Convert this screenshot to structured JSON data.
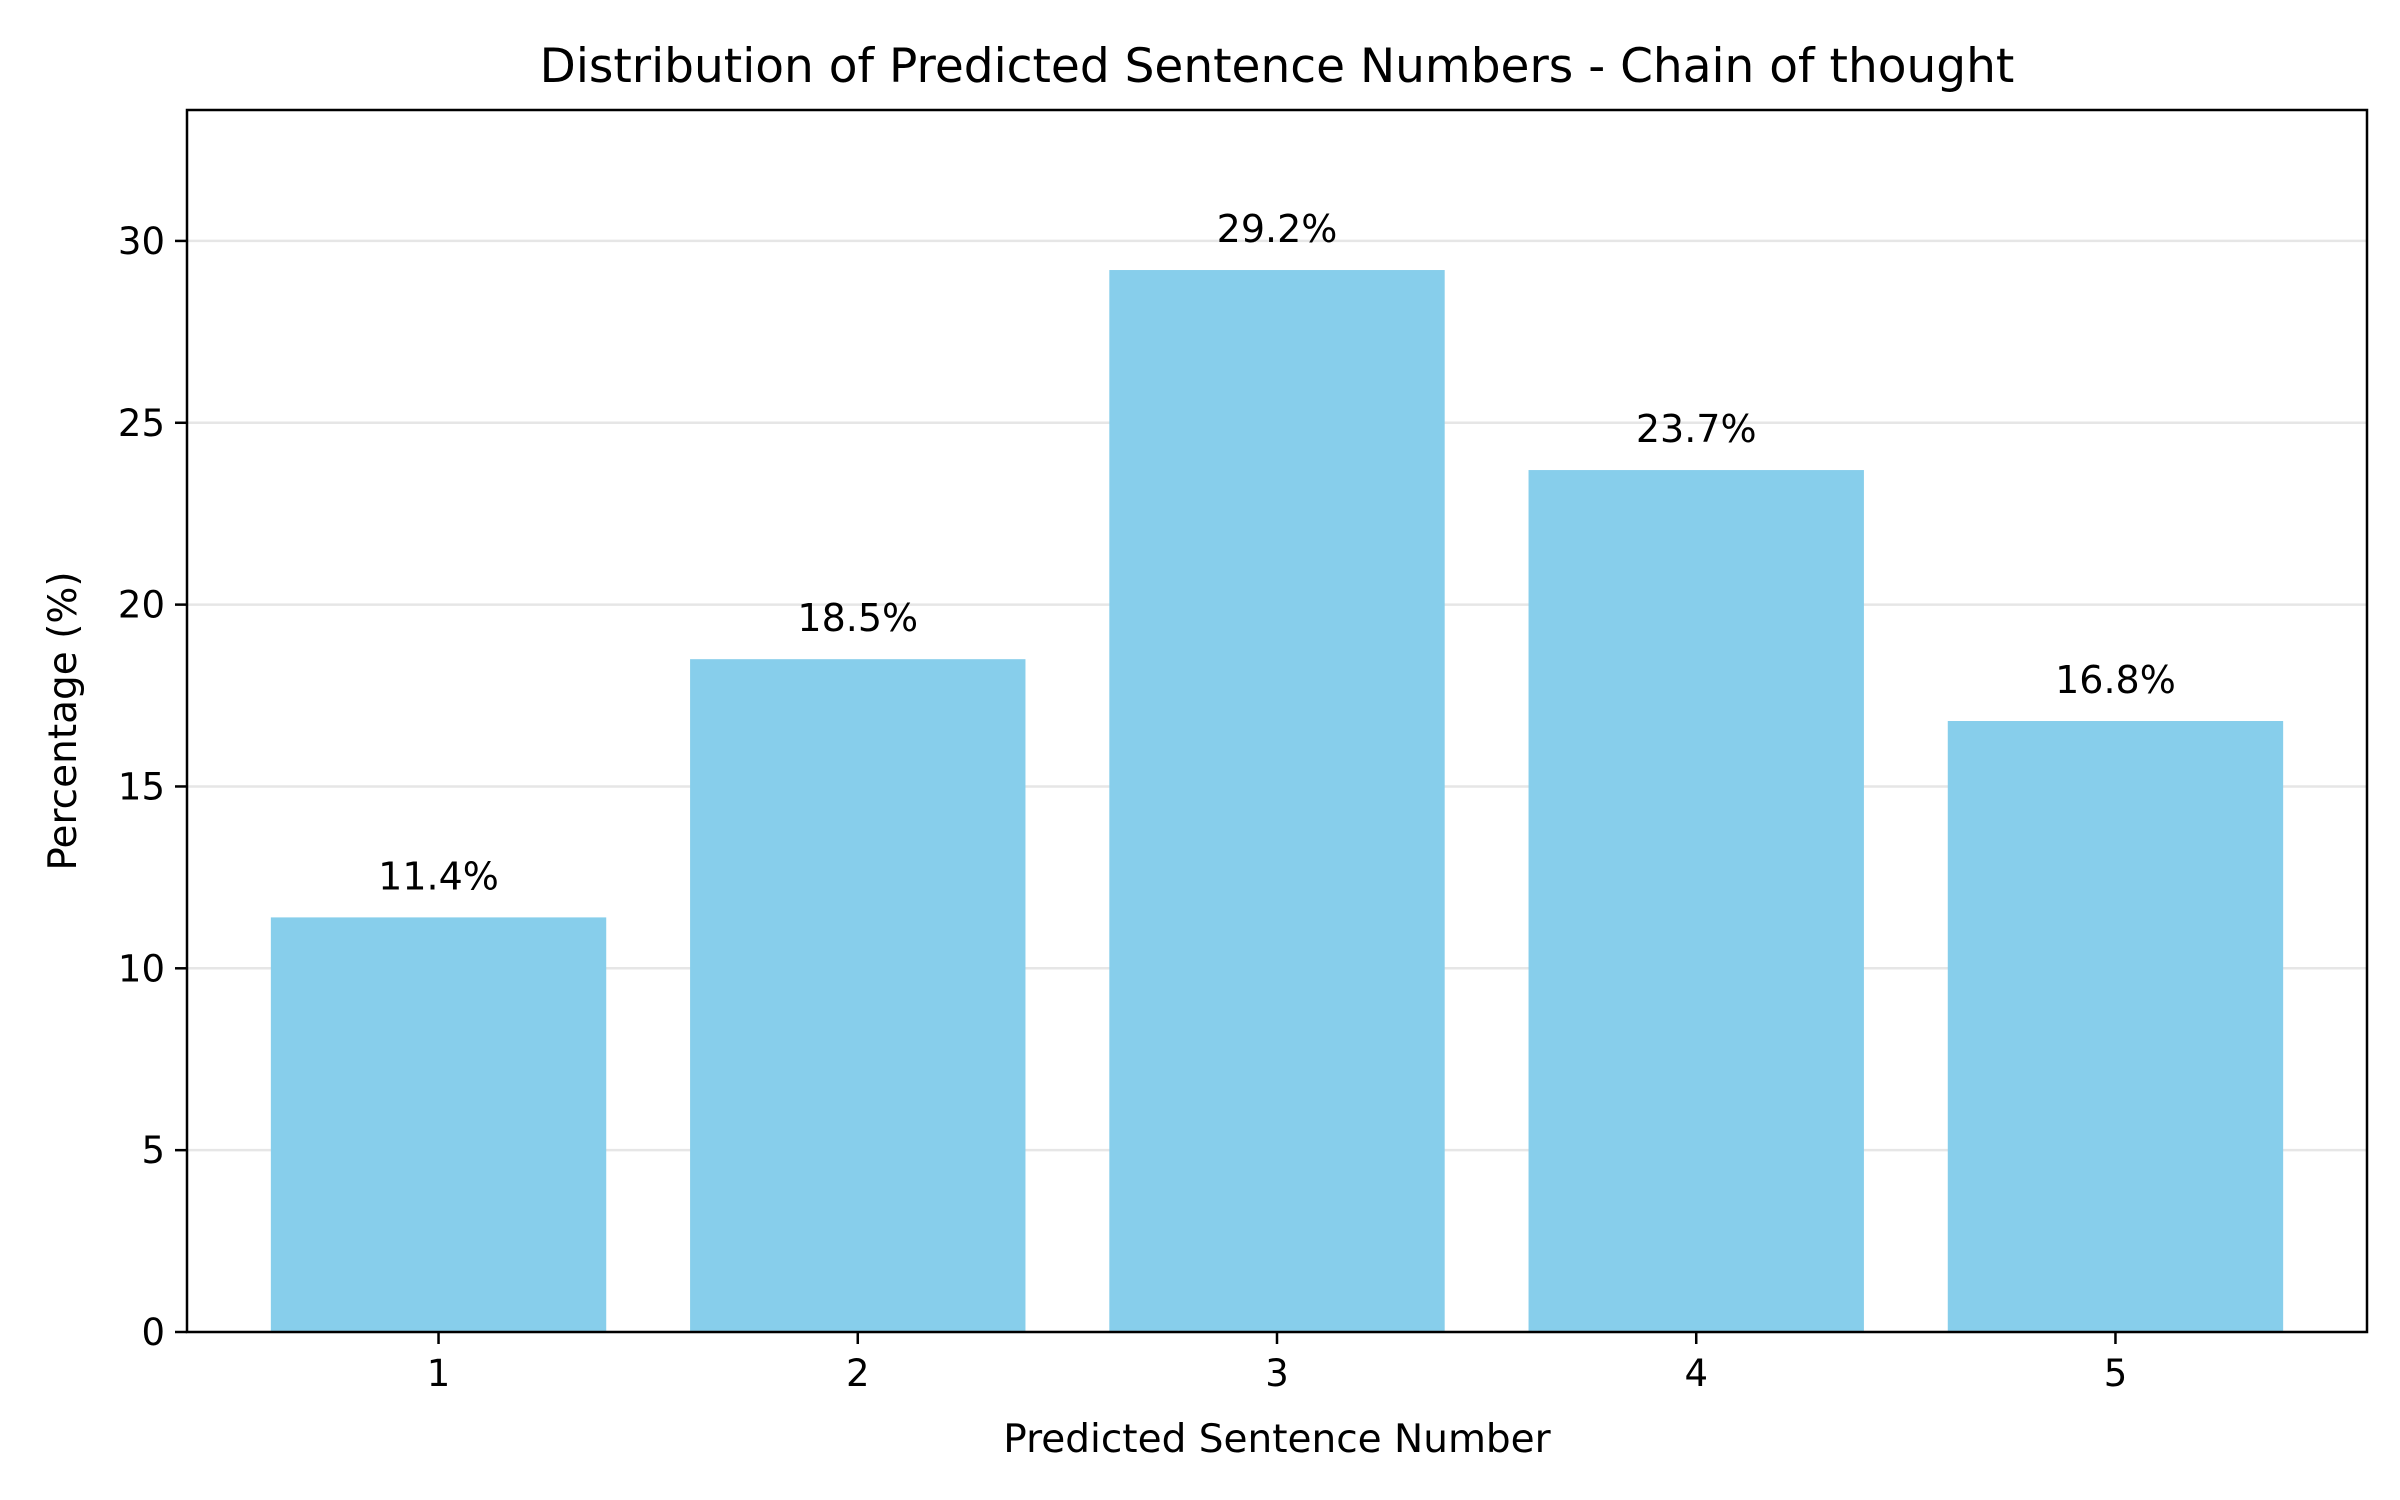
{
  "chart_data": {
    "type": "bar",
    "title": "Distribution of Predicted Sentence Numbers - Chain of thought",
    "xlabel": "Predicted Sentence Number",
    "ylabel": "Percentage (%)",
    "categories": [
      "1",
      "2",
      "3",
      "4",
      "5"
    ],
    "values": [
      11.4,
      18.5,
      29.2,
      23.7,
      16.8
    ],
    "data_labels": [
      "11.4%",
      "18.5%",
      "29.2%",
      "23.7%",
      "16.8%"
    ],
    "ylim": [
      0,
      33.6
    ],
    "yticks": [
      0,
      5,
      10,
      15,
      20,
      25,
      30
    ],
    "ytick_labels": [
      "0",
      "5",
      "10",
      "15",
      "20",
      "25",
      "30"
    ],
    "grid": "horizontal",
    "bar_color": "#87CEEB",
    "grid_color": "#e6e6e6"
  }
}
